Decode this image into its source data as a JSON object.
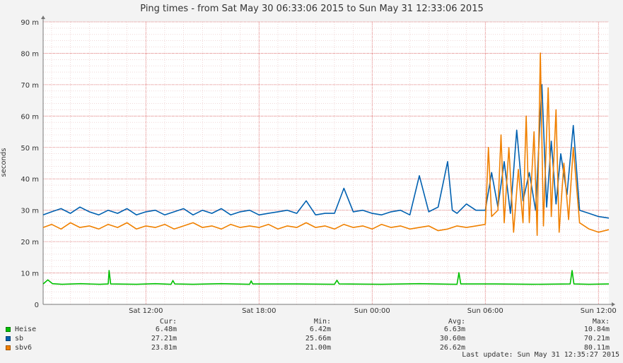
{
  "chart_data": {
    "type": "line",
    "title": "Ping times - from Sat May 30 06:33:06 2015 to Sun May 31 12:33:06 2015",
    "ylabel": "seconds",
    "ylim": [
      0,
      0.09
    ],
    "yticks": [
      {
        "value": 0,
        "label": "0"
      },
      {
        "value": 0.01,
        "label": "10 m"
      },
      {
        "value": 0.02,
        "label": "20 m"
      },
      {
        "value": 0.03,
        "label": "30 m"
      },
      {
        "value": 0.04,
        "label": "40 m"
      },
      {
        "value": 0.05,
        "label": "50 m"
      },
      {
        "value": 0.06,
        "label": "60 m"
      },
      {
        "value": 0.07,
        "label": "70 m"
      },
      {
        "value": 0.08,
        "label": "80 m"
      },
      {
        "value": 0.09,
        "label": "90 m"
      }
    ],
    "xlim": [
      "2015-05-30 06:33:06",
      "2015-05-31 12:33:06"
    ],
    "xticks": [
      {
        "time": "2015-05-30 12:00",
        "label": "Sat 12:00"
      },
      {
        "time": "2015-05-30 18:00",
        "label": "Sat 18:00"
      },
      {
        "time": "2015-05-31 00:00",
        "label": "Sun 00:00"
      },
      {
        "time": "2015-05-31 06:00",
        "label": "Sun 06:00"
      },
      {
        "time": "2015-05-31 12:00",
        "label": "Sun 12:00"
      }
    ],
    "grid": true,
    "legend_placement": "bottom-left",
    "series": [
      {
        "name": "Heise",
        "color": "#00c000",
        "points": [
          [
            "2015-05-30 06:33",
            0.0065
          ],
          [
            "2015-05-30 06:48",
            0.0078
          ],
          [
            "2015-05-30 07:03",
            0.0066
          ],
          [
            "2015-05-30 07:33",
            0.0064
          ],
          [
            "2015-05-30 08:33",
            0.0066
          ],
          [
            "2015-05-30 09:33",
            0.0064
          ],
          [
            "2015-05-30 10:00",
            0.0065
          ],
          [
            "2015-05-30 10:03",
            0.0108
          ],
          [
            "2015-05-30 10:08",
            0.0065
          ],
          [
            "2015-05-30 11:30",
            0.0064
          ],
          [
            "2015-05-30 12:30",
            0.0066
          ],
          [
            "2015-05-30 13:20",
            0.0064
          ],
          [
            "2015-05-30 13:26",
            0.0076
          ],
          [
            "2015-05-30 13:32",
            0.0065
          ],
          [
            "2015-05-30 14:30",
            0.0064
          ],
          [
            "2015-05-30 16:00",
            0.0066
          ],
          [
            "2015-05-30 17:30",
            0.0064
          ],
          [
            "2015-05-30 17:35",
            0.0075
          ],
          [
            "2015-05-30 17:40",
            0.0065
          ],
          [
            "2015-05-30 20:00",
            0.0065
          ],
          [
            "2015-05-30 22:00",
            0.0064
          ],
          [
            "2015-05-30 22:08",
            0.0077
          ],
          [
            "2015-05-30 22:15",
            0.0065
          ],
          [
            "2015-05-31 00:30",
            0.0064
          ],
          [
            "2015-05-31 02:30",
            0.0066
          ],
          [
            "2015-05-31 04:30",
            0.0064
          ],
          [
            "2015-05-31 04:36",
            0.0101
          ],
          [
            "2015-05-31 04:42",
            0.0065
          ],
          [
            "2015-05-31 06:30",
            0.0065
          ],
          [
            "2015-05-31 08:30",
            0.0064
          ],
          [
            "2015-05-31 10:30",
            0.0065
          ],
          [
            "2015-05-31 10:36",
            0.0108
          ],
          [
            "2015-05-31 10:42",
            0.0065
          ],
          [
            "2015-05-31 11:30",
            0.0064
          ],
          [
            "2015-05-31 12:33",
            0.0065
          ]
        ]
      },
      {
        "name": "sb",
        "color": "#0060b0",
        "points": [
          [
            "2015-05-30 06:33",
            0.0285
          ],
          [
            "2015-05-30 07:00",
            0.0295
          ],
          [
            "2015-05-30 07:30",
            0.0305
          ],
          [
            "2015-05-30 08:00",
            0.029
          ],
          [
            "2015-05-30 08:30",
            0.031
          ],
          [
            "2015-05-30 09:00",
            0.0295
          ],
          [
            "2015-05-30 09:30",
            0.0285
          ],
          [
            "2015-05-30 10:00",
            0.03
          ],
          [
            "2015-05-30 10:30",
            0.029
          ],
          [
            "2015-05-30 11:00",
            0.0305
          ],
          [
            "2015-05-30 11:30",
            0.0285
          ],
          [
            "2015-05-30 12:00",
            0.0295
          ],
          [
            "2015-05-30 12:30",
            0.03
          ],
          [
            "2015-05-30 13:00",
            0.0285
          ],
          [
            "2015-05-30 13:30",
            0.0295
          ],
          [
            "2015-05-30 14:00",
            0.0305
          ],
          [
            "2015-05-30 14:30",
            0.0285
          ],
          [
            "2015-05-30 15:00",
            0.03
          ],
          [
            "2015-05-30 15:30",
            0.029
          ],
          [
            "2015-05-30 16:00",
            0.0305
          ],
          [
            "2015-05-30 16:30",
            0.0285
          ],
          [
            "2015-05-30 17:00",
            0.0295
          ],
          [
            "2015-05-30 17:30",
            0.03
          ],
          [
            "2015-05-30 18:00",
            0.0285
          ],
          [
            "2015-05-30 18:30",
            0.029
          ],
          [
            "2015-05-30 19:00",
            0.0295
          ],
          [
            "2015-05-30 19:30",
            0.03
          ],
          [
            "2015-05-30 20:00",
            0.029
          ],
          [
            "2015-05-30 20:30",
            0.033
          ],
          [
            "2015-05-30 21:00",
            0.0285
          ],
          [
            "2015-05-30 21:30",
            0.029
          ],
          [
            "2015-05-30 22:00",
            0.029
          ],
          [
            "2015-05-30 22:30",
            0.037
          ],
          [
            "2015-05-30 23:00",
            0.0295
          ],
          [
            "2015-05-30 23:30",
            0.03
          ],
          [
            "2015-05-31 00:00",
            0.029
          ],
          [
            "2015-05-31 00:30",
            0.0285
          ],
          [
            "2015-05-31 01:00",
            0.0295
          ],
          [
            "2015-05-31 01:30",
            0.03
          ],
          [
            "2015-05-31 02:00",
            0.0285
          ],
          [
            "2015-05-31 02:30",
            0.041
          ],
          [
            "2015-05-31 03:00",
            0.0295
          ],
          [
            "2015-05-31 03:30",
            0.031
          ],
          [
            "2015-05-31 04:00",
            0.0455
          ],
          [
            "2015-05-31 04:15",
            0.03
          ],
          [
            "2015-05-31 04:30",
            0.029
          ],
          [
            "2015-05-31 05:00",
            0.032
          ],
          [
            "2015-05-31 05:30",
            0.03
          ],
          [
            "2015-05-31 06:00",
            0.03
          ],
          [
            "2015-05-31 06:20",
            0.042
          ],
          [
            "2015-05-31 06:40",
            0.031
          ],
          [
            "2015-05-31 07:00",
            0.0455
          ],
          [
            "2015-05-31 07:20",
            0.029
          ],
          [
            "2015-05-31 07:40",
            0.0555
          ],
          [
            "2015-05-31 08:00",
            0.033
          ],
          [
            "2015-05-31 08:20",
            0.042
          ],
          [
            "2015-05-31 08:40",
            0.03
          ],
          [
            "2015-05-31 09:00",
            0.07
          ],
          [
            "2015-05-31 09:15",
            0.031
          ],
          [
            "2015-05-31 09:30",
            0.052
          ],
          [
            "2015-05-31 09:45",
            0.032
          ],
          [
            "2015-05-31 10:00",
            0.048
          ],
          [
            "2015-05-31 10:20",
            0.035
          ],
          [
            "2015-05-31 10:40",
            0.057
          ],
          [
            "2015-05-31 11:00",
            0.03
          ],
          [
            "2015-05-31 11:30",
            0.029
          ],
          [
            "2015-05-31 12:00",
            0.028
          ],
          [
            "2015-05-31 12:33",
            0.0275
          ]
        ]
      },
      {
        "name": "sbv6",
        "color": "#f08000",
        "points": [
          [
            "2015-05-30 06:33",
            0.0245
          ],
          [
            "2015-05-30 07:00",
            0.0255
          ],
          [
            "2015-05-30 07:30",
            0.024
          ],
          [
            "2015-05-30 08:00",
            0.026
          ],
          [
            "2015-05-30 08:30",
            0.0245
          ],
          [
            "2015-05-30 09:00",
            0.025
          ],
          [
            "2015-05-30 09:30",
            0.024
          ],
          [
            "2015-05-30 10:00",
            0.0255
          ],
          [
            "2015-05-30 10:30",
            0.0245
          ],
          [
            "2015-05-30 11:00",
            0.026
          ],
          [
            "2015-05-30 11:30",
            0.024
          ],
          [
            "2015-05-30 12:00",
            0.025
          ],
          [
            "2015-05-30 12:30",
            0.0245
          ],
          [
            "2015-05-30 13:00",
            0.0255
          ],
          [
            "2015-05-30 13:30",
            0.024
          ],
          [
            "2015-05-30 14:00",
            0.025
          ],
          [
            "2015-05-30 14:30",
            0.026
          ],
          [
            "2015-05-30 15:00",
            0.0245
          ],
          [
            "2015-05-30 15:30",
            0.025
          ],
          [
            "2015-05-30 16:00",
            0.024
          ],
          [
            "2015-05-30 16:30",
            0.0255
          ],
          [
            "2015-05-30 17:00",
            0.0245
          ],
          [
            "2015-05-30 17:30",
            0.025
          ],
          [
            "2015-05-30 18:00",
            0.0245
          ],
          [
            "2015-05-30 18:30",
            0.0255
          ],
          [
            "2015-05-30 19:00",
            0.024
          ],
          [
            "2015-05-30 19:30",
            0.025
          ],
          [
            "2015-05-30 20:00",
            0.0245
          ],
          [
            "2015-05-30 20:30",
            0.026
          ],
          [
            "2015-05-30 21:00",
            0.0245
          ],
          [
            "2015-05-30 21:30",
            0.025
          ],
          [
            "2015-05-30 22:00",
            0.024
          ],
          [
            "2015-05-30 22:30",
            0.0255
          ],
          [
            "2015-05-30 23:00",
            0.0245
          ],
          [
            "2015-05-30 23:30",
            0.025
          ],
          [
            "2015-05-31 00:00",
            0.024
          ],
          [
            "2015-05-31 00:30",
            0.0255
          ],
          [
            "2015-05-31 01:00",
            0.0245
          ],
          [
            "2015-05-31 01:30",
            0.025
          ],
          [
            "2015-05-31 02:00",
            0.024
          ],
          [
            "2015-05-31 02:30",
            0.0245
          ],
          [
            "2015-05-31 03:00",
            0.025
          ],
          [
            "2015-05-31 03:30",
            0.0235
          ],
          [
            "2015-05-31 04:00",
            0.024
          ],
          [
            "2015-05-31 04:30",
            0.025
          ],
          [
            "2015-05-31 05:00",
            0.0245
          ],
          [
            "2015-05-31 05:30",
            0.025
          ],
          [
            "2015-05-31 06:00",
            0.0255
          ],
          [
            "2015-05-31 06:10",
            0.05
          ],
          [
            "2015-05-31 06:20",
            0.028
          ],
          [
            "2015-05-31 06:40",
            0.03
          ],
          [
            "2015-05-31 06:50",
            0.054
          ],
          [
            "2015-05-31 07:00",
            0.026
          ],
          [
            "2015-05-31 07:15",
            0.05
          ],
          [
            "2015-05-31 07:30",
            0.023
          ],
          [
            "2015-05-31 07:45",
            0.043
          ],
          [
            "2015-05-31 08:00",
            0.026
          ],
          [
            "2015-05-31 08:10",
            0.06
          ],
          [
            "2015-05-31 08:20",
            0.026
          ],
          [
            "2015-05-31 08:35",
            0.055
          ],
          [
            "2015-05-31 08:45",
            0.022
          ],
          [
            "2015-05-31 08:55",
            0.0801
          ],
          [
            "2015-05-31 09:05",
            0.025
          ],
          [
            "2015-05-31 09:20",
            0.069
          ],
          [
            "2015-05-31 09:30",
            0.028
          ],
          [
            "2015-05-31 09:45",
            0.062
          ],
          [
            "2015-05-31 09:55",
            0.023
          ],
          [
            "2015-05-31 10:10",
            0.045
          ],
          [
            "2015-05-31 10:25",
            0.027
          ],
          [
            "2015-05-31 10:40",
            0.05
          ],
          [
            "2015-05-31 11:00",
            0.026
          ],
          [
            "2015-05-31 11:30",
            0.024
          ],
          [
            "2015-05-31 12:00",
            0.023
          ],
          [
            "2015-05-31 12:33",
            0.0238
          ]
        ]
      }
    ]
  },
  "legend": [
    {
      "name": "Heise",
      "color": "#00c000",
      "cur": "6.48m",
      "min": "6.42m",
      "avg": "6.63m",
      "max": "10.84m"
    },
    {
      "name": "sb",
      "color": "#0060b0",
      "cur": "27.21m",
      "min": "25.66m",
      "avg": "30.60m",
      "max": "70.21m"
    },
    {
      "name": "sbv6",
      "color": "#f08000",
      "cur": "23.81m",
      "min": "21.00m",
      "avg": "26.62m",
      "max": "80.11m"
    }
  ],
  "stats_headers": {
    "cur": "Cur:",
    "min": "Min:",
    "avg": "Avg:",
    "max": "Max:"
  },
  "last_update": "Last update: Sun May 31 12:35:27 2015"
}
